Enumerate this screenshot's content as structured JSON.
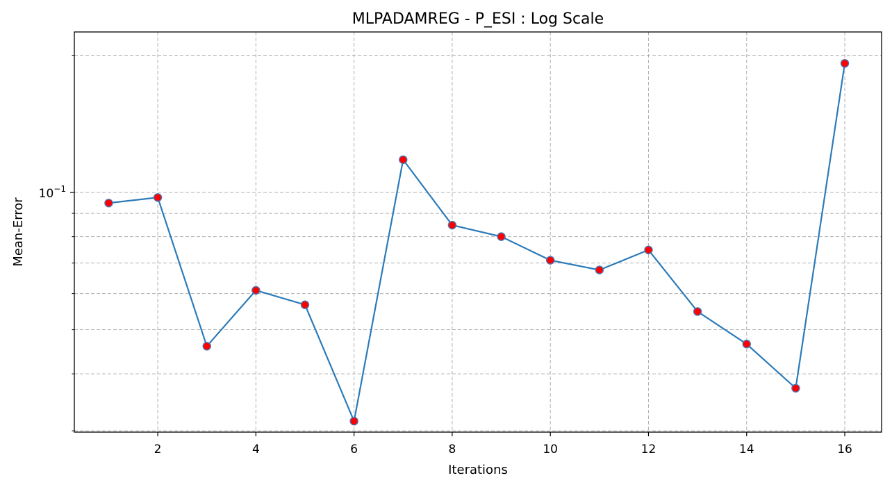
{
  "chart_data": {
    "type": "line",
    "title": "MLPADAMREG - P_ESI : Log Scale",
    "xlabel": "Iterations",
    "ylabel": "Mean-Error",
    "yscale": "log",
    "xlim": [
      0.3,
      16.75
    ],
    "ylim": [
      0.0298,
      0.225
    ],
    "x_ticks": [
      2,
      4,
      6,
      8,
      10,
      12,
      14,
      16
    ],
    "x_tick_labels": [
      "2",
      "4",
      "6",
      "8",
      "10",
      "12",
      "14",
      "16"
    ],
    "y_major_ticks": [
      0.1
    ],
    "y_major_tick_labels": [
      "10",
      "−1"
    ],
    "y_minor_ticks": [
      0.03,
      0.04,
      0.05,
      0.06,
      0.07,
      0.08,
      0.09,
      0.2
    ],
    "grid": true,
    "grid_style": "dashed",
    "line_color": "#2b7bb9",
    "marker_face_color": "#ff0000",
    "marker_edge_color": "#4a76b0",
    "series": [
      {
        "x": [
          1,
          2,
          3,
          4,
          5,
          6,
          7,
          8,
          9,
          10,
          11,
          12,
          13,
          14,
          15,
          16
        ],
        "y": [
          0.0948,
          0.0975,
          0.046,
          0.061,
          0.0567,
          0.0315,
          0.118,
          0.0848,
          0.08,
          0.071,
          0.0676,
          0.0748,
          0.0548,
          0.0465,
          0.0372,
          0.192
        ]
      }
    ]
  }
}
